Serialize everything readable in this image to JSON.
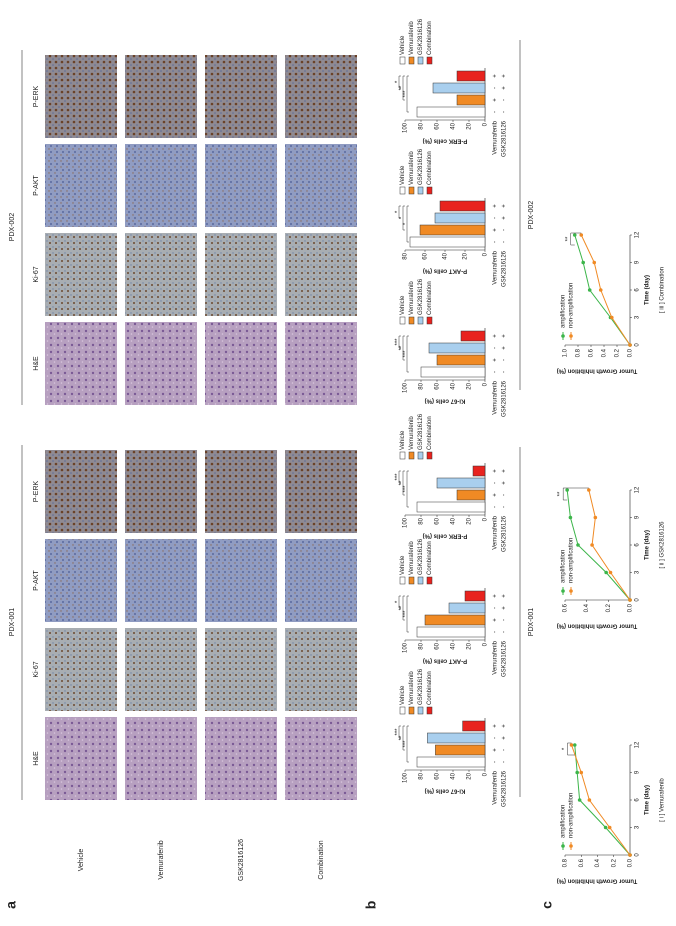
{
  "figure": {
    "panel_labels": [
      "a",
      "b",
      "c"
    ],
    "ihc": {
      "groups": [
        {
          "title": "PDX-001",
          "columns": [
            "H&E",
            "Ki-67",
            "P-AKT",
            "P-ERK"
          ]
        },
        {
          "title": "PDX-002",
          "columns": [
            "H&E",
            "Ki-67",
            "P-AKT",
            "P-ERK"
          ]
        }
      ],
      "rows": [
        "Vehicle",
        "Vemurafenib",
        "GSK2816126",
        "Combination"
      ]
    },
    "b_groups": [
      "PDX-001",
      "PDX-002"
    ]
  },
  "chart_data": [
    {
      "type": "bar",
      "ylabel": "Ki-67 cells (%)",
      "categories": [
        "Vehicle",
        "Vemurafenib",
        "GSK2816126",
        "Combination"
      ],
      "colors": [
        "#ffffff",
        "#f08a24",
        "#a9cfee",
        "#e8231e"
      ],
      "values": [
        85,
        62,
        72,
        28
      ],
      "ylim": [
        0,
        100
      ],
      "yticks": [
        0,
        20,
        40,
        60,
        80,
        100
      ],
      "significance": [
        "***",
        "**",
        "***"
      ],
      "treatments": [
        {
          "label": "Vemurafenib",
          "signs": [
            "-",
            "+",
            "-",
            "+"
          ]
        },
        {
          "label": "GSK2816126",
          "signs": [
            "-",
            "-",
            "+",
            "+"
          ]
        }
      ]
    },
    {
      "type": "bar",
      "ylabel": "P-AKT cells (%)",
      "categories": [
        "Vehicle",
        "Vemurafenib",
        "GSK2816126",
        "Combination"
      ],
      "colors": [
        "#ffffff",
        "#f08a24",
        "#a9cfee",
        "#e8231e"
      ],
      "values": [
        85,
        75,
        45,
        25
      ],
      "ylim": [
        0,
        100
      ],
      "yticks": [
        0,
        20,
        40,
        60,
        80,
        100
      ],
      "significance": [
        "***",
        "**",
        "*"
      ],
      "treatments": [
        {
          "label": "Vemurafenib",
          "signs": [
            "-",
            "+",
            "-",
            "+"
          ]
        },
        {
          "label": "GSK2816126",
          "signs": [
            "-",
            "-",
            "+",
            "+"
          ]
        }
      ]
    },
    {
      "type": "bar",
      "ylabel": "P-ERK cells (%)",
      "categories": [
        "Vehicle",
        "Vemurafenib",
        "GSK2816126",
        "Combination"
      ],
      "colors": [
        "#ffffff",
        "#f08a24",
        "#a9cfee",
        "#e8231e"
      ],
      "values": [
        85,
        35,
        60,
        15
      ],
      "ylim": [
        0,
        100
      ],
      "yticks": [
        0,
        20,
        40,
        60,
        80,
        100
      ],
      "significance": [
        "***",
        "**",
        "***"
      ],
      "treatments": [
        {
          "label": "Vemurafenib",
          "signs": [
            "-",
            "+",
            "-",
            "+"
          ]
        },
        {
          "label": "GSK2816126",
          "signs": [
            "-",
            "-",
            "+",
            "+"
          ]
        }
      ]
    },
    {
      "type": "bar",
      "ylabel": "Ki-67 cells (%)",
      "categories": [
        "Vehicle",
        "Vemurafenib",
        "GSK2816126",
        "Combination"
      ],
      "colors": [
        "#ffffff",
        "#f08a24",
        "#a9cfee",
        "#e8231e"
      ],
      "values": [
        80,
        60,
        70,
        30
      ],
      "ylim": [
        0,
        100
      ],
      "yticks": [
        0,
        20,
        40,
        60,
        80,
        100
      ],
      "significance": [
        "***",
        "**",
        "***"
      ],
      "treatments": [
        {
          "label": "Vemurafenib",
          "signs": [
            "-",
            "+",
            "-",
            "+"
          ]
        },
        {
          "label": "GSK2816126",
          "signs": [
            "-",
            "-",
            "+",
            "+"
          ]
        }
      ]
    },
    {
      "type": "bar",
      "ylabel": "P-AKT cells (%)",
      "categories": [
        "Vehicle",
        "Vemurafenib",
        "GSK2816126",
        "Combination"
      ],
      "colors": [
        "#ffffff",
        "#f08a24",
        "#a9cfee",
        "#e8231e"
      ],
      "values": [
        75,
        65,
        50,
        45
      ],
      "ylim": [
        0,
        80
      ],
      "yticks": [
        0,
        20,
        40,
        60,
        80
      ],
      "significance": [
        "*",
        "*",
        "*"
      ],
      "treatments": [
        {
          "label": "Vemurafenib",
          "signs": [
            "-",
            "+",
            "-",
            "+"
          ]
        },
        {
          "label": "GSK2816126",
          "signs": [
            "-",
            "-",
            "+",
            "+"
          ]
        }
      ]
    },
    {
      "type": "bar",
      "ylabel": "P-ERK cells (%)",
      "categories": [
        "Vehicle",
        "Vemurafenib",
        "GSK2816126",
        "Combination"
      ],
      "colors": [
        "#ffffff",
        "#f08a24",
        "#a9cfee",
        "#e8231e"
      ],
      "values": [
        85,
        35,
        65,
        35
      ],
      "ylim": [
        0,
        100
      ],
      "yticks": [
        0,
        20,
        40,
        60,
        80,
        100
      ],
      "significance": [
        "***",
        "**",
        "*"
      ],
      "treatments": [
        {
          "label": "Vemurafenib",
          "signs": [
            "-",
            "+",
            "-",
            "+"
          ]
        },
        {
          "label": "GSK2816126",
          "signs": [
            "-",
            "-",
            "+",
            "+"
          ]
        }
      ]
    },
    {
      "type": "line",
      "xlabel": "Time (day)",
      "ylabel": "Tumor Growth Inhibition (%)",
      "x": [
        0,
        3,
        6,
        9,
        12
      ],
      "xlim": [
        0,
        12
      ],
      "xticks": [
        0,
        3,
        6,
        9,
        12
      ],
      "ylim": [
        0,
        0.8
      ],
      "yticks": [
        {
          "value": 0,
          "label": "0.0"
        },
        0.2,
        0.4,
        0.6,
        0.8
      ],
      "series": [
        {
          "name": "amplification",
          "color": "#3cb54a",
          "values": [
            0,
            0.3,
            0.62,
            0.65,
            0.68
          ]
        },
        {
          "name": "non-amplification",
          "color": "#f08a24",
          "values": [
            0,
            0.25,
            0.5,
            0.6,
            0.72
          ]
        }
      ],
      "significance": "*",
      "caption": "[ i ] Vemurafenib"
    },
    {
      "type": "line",
      "xlabel": "Time (day)",
      "ylabel": "Tumor Growth Inhibition (%)",
      "x": [
        0,
        3,
        6,
        9,
        12
      ],
      "xlim": [
        0,
        12
      ],
      "xticks": [
        0,
        3,
        6,
        9,
        12
      ],
      "ylim": [
        0,
        0.6
      ],
      "yticks": [
        {
          "value": 0,
          "label": "0.0"
        },
        0.2,
        0.4,
        0.6
      ],
      "series": [
        {
          "name": "amplification",
          "color": "#3cb54a",
          "values": [
            0,
            0.22,
            0.48,
            0.55,
            0.58
          ]
        },
        {
          "name": "non-amplification",
          "color": "#f08a24",
          "values": [
            0,
            0.18,
            0.35,
            0.32,
            0.38
          ]
        }
      ],
      "significance": "**",
      "caption": "[ ii ] GSK2816126"
    },
    {
      "type": "line",
      "xlabel": "Time (day)",
      "ylabel": "Tumor Growth Inhibition (%)",
      "x": [
        0,
        3,
        6,
        9,
        12
      ],
      "xlim": [
        0,
        12
      ],
      "xticks": [
        0,
        3,
        6,
        9,
        12
      ],
      "ylim": [
        0,
        1
      ],
      "yticks": [
        {
          "value": 0,
          "label": "0.0"
        },
        0.2,
        0.4,
        0.6,
        0.8,
        {
          "value": 1,
          "label": "1.0"
        }
      ],
      "series": [
        {
          "name": "amplification",
          "color": "#3cb54a",
          "values": [
            0,
            0.3,
            0.62,
            0.72,
            0.85
          ]
        },
        {
          "name": "non-amplification",
          "color": "#f08a24",
          "values": [
            0,
            0.28,
            0.45,
            0.55,
            0.75
          ]
        }
      ],
      "significance": "**",
      "caption": "[ iii ] Combination"
    }
  ]
}
